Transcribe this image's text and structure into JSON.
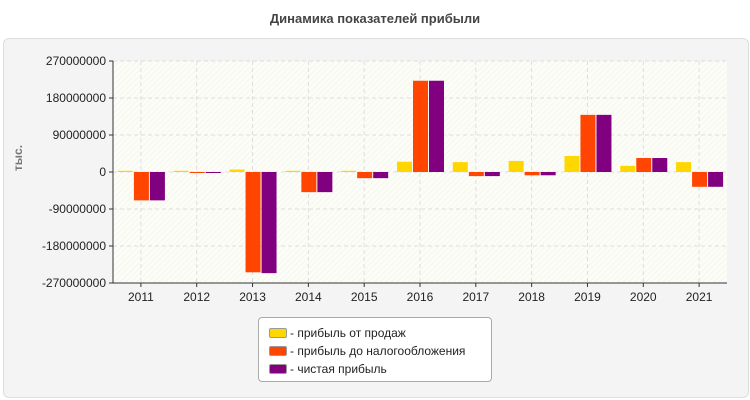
{
  "chart_data": {
    "type": "bar",
    "title": "Динамика показателей прибыли",
    "ylabel": "тыс.",
    "xlabel": "",
    "ylim": [
      -270000000,
      270000000
    ],
    "yticks": [
      270000000,
      180000000,
      90000000,
      0,
      -90000000,
      -180000000,
      -270000000
    ],
    "ytick_labels": [
      "270000000",
      "180000000",
      "90000000",
      "0",
      "-90000000",
      "-180000000",
      "-270000000"
    ],
    "grid": true,
    "legend_position": "bottom",
    "categories": [
      "2011",
      "2012",
      "2013",
      "2014",
      "2015",
      "2016",
      "2017",
      "2018",
      "2019",
      "2020",
      "2021"
    ],
    "series": [
      {
        "name": "- прибыль от продаж",
        "color": "#ffd700",
        "values": [
          3000000,
          3000000,
          6000000,
          3000000,
          3000000,
          25000000,
          24000000,
          27000000,
          39000000,
          15000000,
          24000000
        ]
      },
      {
        "name": "- прибыль до налогообложения",
        "color": "#ff4500",
        "values": [
          -69000000,
          -2000000,
          -244000000,
          -49000000,
          -15000000,
          222000000,
          -10000000,
          -8000000,
          139000000,
          34000000,
          -36000000
        ]
      },
      {
        "name": "- чистая прибыль",
        "color": "#800080",
        "values": [
          -69000000,
          -2000000,
          -246000000,
          -49000000,
          -15000000,
          222000000,
          -10000000,
          -8000000,
          139000000,
          34000000,
          -36000000
        ]
      }
    ]
  }
}
